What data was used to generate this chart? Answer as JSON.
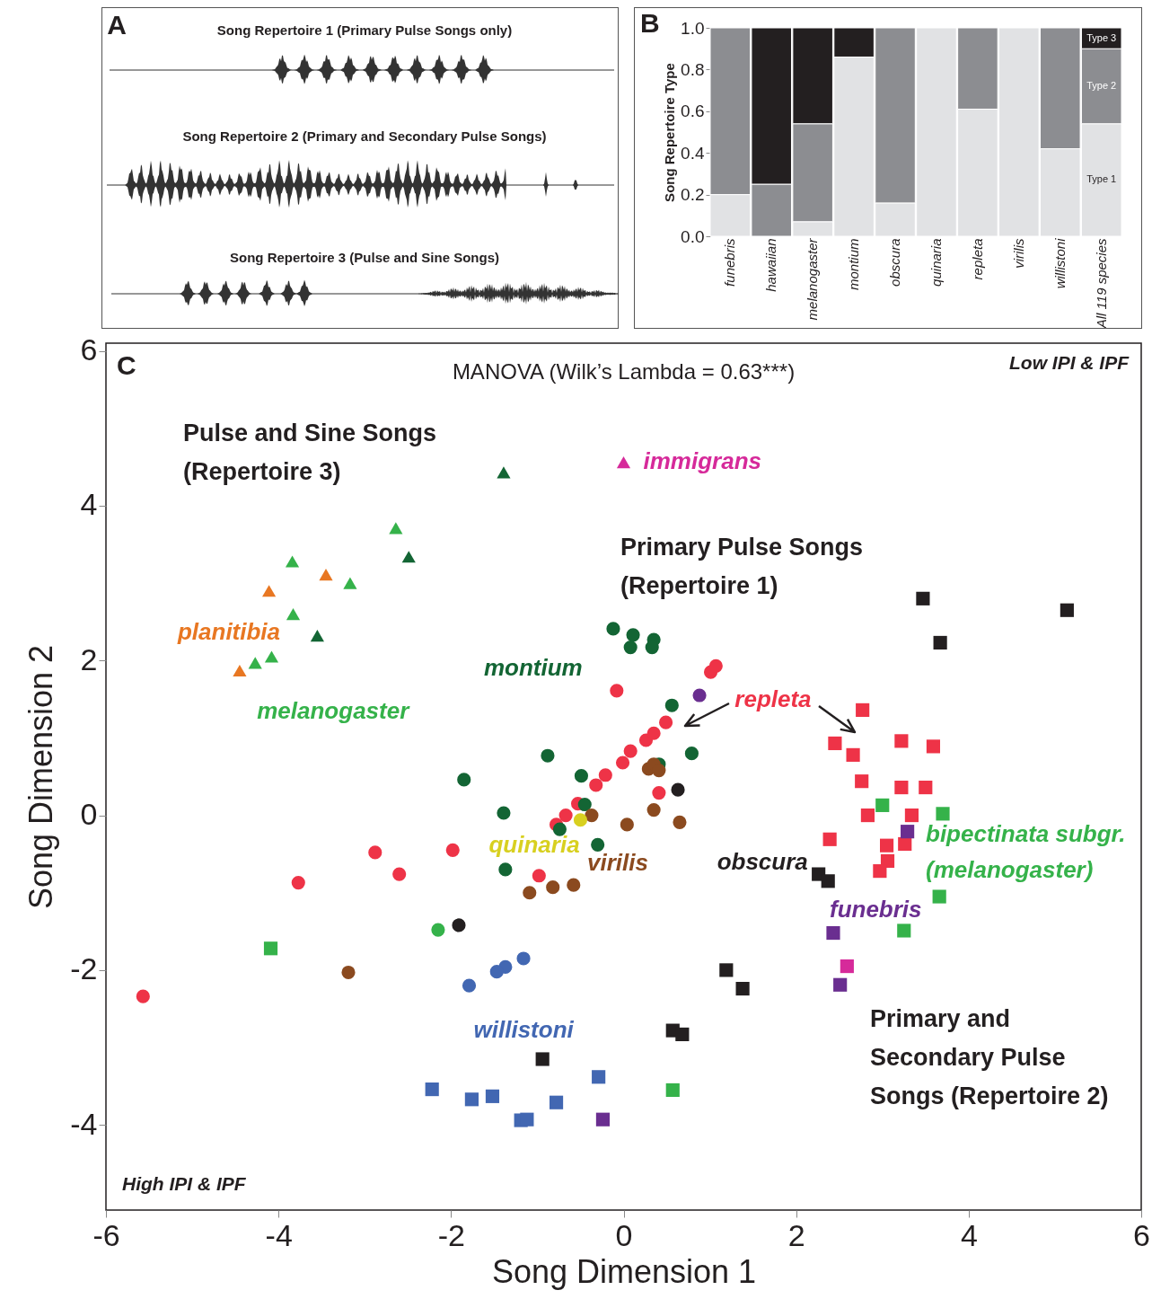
{
  "chart_data": [
    {
      "type": "other",
      "annotations": [
        "A",
        "Song Repertoire 1 (Primary Pulse Songs only)",
        "Song Repertoire 2 (Primary and Secondary Pulse Songs)",
        "Song Repertoire 3 (Pulse and Sine Songs)"
      ]
    },
    {
      "type": "bar",
      "stacked": true,
      "annotations": [
        "B"
      ],
      "ylabel": "Song Repertoire Type",
      "categories": [
        "funebris",
        "hawaiian",
        "melanogaster",
        "montium",
        "obscura",
        "quinaria",
        "repleta",
        "virilis",
        "willistoni",
        "All 119 species"
      ],
      "ylim": [
        0,
        1
      ],
      "yticks": [
        {
          "value": 0,
          "label": "0.0"
        },
        {
          "value": 0.2,
          "label": "0.2"
        },
        {
          "value": 0.4,
          "label": "0.4"
        },
        {
          "value": 0.6,
          "label": "0.6"
        },
        {
          "value": 0.8,
          "label": "0.8"
        },
        {
          "value": 1,
          "label": "1.0"
        }
      ],
      "series": [
        {
          "name": "Type 1",
          "color": "#e1e2e4",
          "values": [
            0.2,
            null,
            0.07,
            0.86,
            0.16,
            1,
            0.61,
            1,
            0.42,
            0.54
          ]
        },
        {
          "name": "Type 2",
          "color": "#8c8d91",
          "values": [
            0.8,
            0.25,
            0.47,
            null,
            0.84,
            null,
            0.39,
            null,
            0.58,
            0.36
          ]
        },
        {
          "name": "Type 3",
          "color": "#231f20",
          "values": [
            null,
            0.75,
            0.46,
            0.14,
            null,
            null,
            null,
            null,
            null,
            0.1
          ]
        }
      ]
    },
    {
      "type": "scatter",
      "title": "MANOVA (Wilk’s Lambda = 0.63***)",
      "xlabel": "Song Dimension 1",
      "ylabel": "Song Dimension 2",
      "xlim": [
        -6,
        6
      ],
      "ylim": [
        -5.1,
        6.1
      ],
      "xticks": [
        -6,
        -4,
        -2,
        0,
        2,
        4,
        6
      ],
      "yticks": [
        -4,
        -2,
        0,
        2,
        4,
        6
      ],
      "annotations": [
        "C",
        "Low IPI & IPF",
        "High IPI & IPF",
        "Pulse and Sine Songs\n(Repertoire 3)",
        "Primary Pulse Songs\n(Repertoire 1)",
        "Primary and\nSecondary Pulse\nSongs (Repertoire 2)",
        {
          "text": "immigrans",
          "x": 0,
          "y": 4.56
        },
        {
          "text": "planitibia",
          "x": -4.45,
          "y": 1.87
        },
        {
          "text": "melanogaster",
          "x": -4.27,
          "y": 1.97
        },
        {
          "text": "montium",
          "x": -0.12,
          "y": 2.41
        },
        {
          "text": "repleta",
          "x": 1.07,
          "y": 1.93
        },
        {
          "text": "quinaria",
          "x": -0.5,
          "y": -0.06
        },
        {
          "text": "virilis",
          "x": -0.37,
          "y": 0
        },
        {
          "text": "obscura",
          "x": 2.26,
          "y": -0.76
        },
        {
          "text": "bipectinata subgr.\n(melanogaster)",
          "x": 3.7,
          "y": 0.02
        },
        {
          "text": "funebris",
          "x": 2.43,
          "y": -1.52
        },
        {
          "text": "willistoni",
          "x": -1.79,
          "y": -2.2
        }
      ],
      "series": [
        {
          "color": "#ee3347",
          "marker": "circle",
          "x": [
            -5.57,
            -3.77,
            -2.88,
            -2.6,
            -1.98,
            -0.98,
            -0.78,
            -0.67,
            -0.53,
            -0.32,
            -0.21,
            -0.08,
            -0.01,
            0.08,
            0.26,
            0.35,
            0.49,
            0.41,
            1.01,
            1.07
          ],
          "values": [
            -2.34,
            -0.87,
            -0.48,
            -0.76,
            -0.45,
            -0.78,
            -0.12,
            0,
            0.15,
            0.39,
            0.52,
            1.61,
            0.68,
            0.83,
            0.97,
            1.06,
            1.2,
            0.29,
            1.85,
            1.93
          ]
        },
        {
          "color": "#ee3347",
          "marker": "square",
          "x": [
            2.77,
            2.45,
            2.66,
            3.22,
            3.59,
            2.76,
            3.22,
            3.5,
            2.83,
            3.34,
            2.39,
            3.05,
            3.26,
            3.06,
            2.97
          ],
          "values": [
            1.36,
            0.93,
            0.78,
            0.96,
            0.89,
            0.44,
            0.36,
            0.36,
            0,
            0,
            -0.31,
            -0.39,
            -0.37,
            -0.59,
            -0.72
          ]
        },
        {
          "color": "#136534",
          "marker": "circle",
          "x": [
            -0.12,
            0.11,
            0.08,
            0.35,
            0.33,
            0.56,
            0.79,
            -0.88,
            -0.49,
            -1.85,
            -1.39,
            -0.74,
            -0.45,
            0.41,
            -0.3,
            -1.37
          ],
          "values": [
            2.41,
            2.33,
            2.17,
            2.27,
            2.17,
            1.42,
            0.8,
            0.77,
            0.51,
            0.46,
            0.03,
            -0.18,
            0.14,
            0.66,
            -0.38,
            -0.7
          ]
        },
        {
          "color": "#136534",
          "marker": "triangle",
          "x": [
            -1.39,
            -2.49,
            -3.55
          ],
          "values": [
            4.43,
            3.34,
            2.32
          ]
        },
        {
          "color": "#8b4a1f",
          "marker": "circle",
          "x": [
            -0.37,
            0.04,
            0.35,
            0.65,
            0.29,
            0.35,
            0.41,
            -1.09,
            -0.82,
            -0.58,
            -3.19
          ],
          "values": [
            0,
            -0.12,
            0.07,
            -0.09,
            0.6,
            0.66,
            0.58,
            -1,
            -0.93,
            -0.9,
            -2.03
          ]
        },
        {
          "color": "#d8d020",
          "marker": "circle",
          "x": [
            -0.5
          ],
          "values": [
            -0.06
          ]
        },
        {
          "color": "#231f20",
          "marker": "circle",
          "x": [
            0.63,
            -1.91
          ],
          "values": [
            0.33,
            -1.42
          ]
        },
        {
          "color": "#231f20",
          "marker": "square",
          "x": [
            -0.94,
            1.19,
            0.57,
            0.68,
            1.38,
            3.47,
            3.67,
            5.14,
            2.26,
            2.37
          ],
          "values": [
            -3.15,
            -2,
            -2.78,
            -2.83,
            -2.24,
            2.8,
            2.23,
            2.65,
            -0.76,
            -0.85
          ]
        },
        {
          "color": "#6a2e90",
          "marker": "circle",
          "x": [
            0.88
          ],
          "values": [
            1.55
          ]
        },
        {
          "color": "#6a2e90",
          "marker": "square",
          "x": [
            -0.24,
            3.29,
            2.43,
            2.51
          ],
          "values": [
            -3.93,
            -0.21,
            -1.52,
            -2.19
          ]
        },
        {
          "color": "#d62a9a",
          "marker": "triangle",
          "x": [
            0
          ],
          "values": [
            4.56
          ]
        },
        {
          "color": "#d62a9a",
          "marker": "square",
          "x": [
            2.59
          ],
          "values": [
            -1.95
          ]
        },
        {
          "color": "#35b24a",
          "marker": "triangle",
          "x": [
            -2.64,
            -3.84,
            -3.17,
            -3.83,
            -4.27,
            -4.08
          ],
          "values": [
            3.71,
            3.28,
            3,
            2.6,
            1.97,
            2.05
          ]
        },
        {
          "color": "#35b24a",
          "marker": "circle",
          "x": [
            -2.15
          ],
          "values": [
            -1.48
          ]
        },
        {
          "color": "#35b24a",
          "marker": "square",
          "x": [
            -4.09,
            0.57,
            3,
            3.7,
            3.66,
            3.25
          ],
          "values": [
            -1.72,
            -3.55,
            0.13,
            0.02,
            -1.05,
            -1.49
          ]
        },
        {
          "color": "#e87722",
          "marker": "triangle",
          "x": [
            -4.11,
            -3.45,
            -4.45
          ],
          "values": [
            2.9,
            3.11,
            1.87
          ]
        },
        {
          "color": "#4267b2",
          "marker": "circle",
          "x": [
            -1.16,
            -1.37,
            -1.47,
            -1.79
          ],
          "values": [
            -1.85,
            -1.96,
            -2.02,
            -2.2
          ]
        },
        {
          "color": "#4267b2",
          "marker": "square",
          "x": [
            -2.22,
            -1.76,
            -1.52,
            -0.78,
            -0.29,
            -1.19,
            -1.12
          ],
          "values": [
            -3.54,
            -3.67,
            -3.63,
            -3.71,
            -3.38,
            -3.94,
            -3.93
          ]
        }
      ]
    }
  ]
}
